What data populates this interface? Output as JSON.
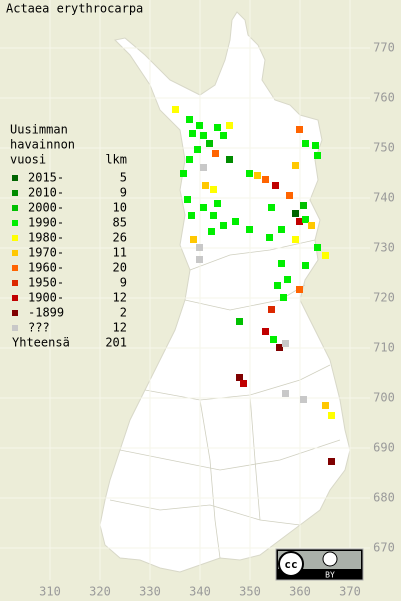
{
  "title": "Actaea erythrocarpa",
  "legend": {
    "header": [
      "Uusimman",
      "havainnon",
      "vuosi"
    ],
    "count_header": "lkm",
    "entries": [
      {
        "label": "2015-",
        "count": 5,
        "color": "#006400"
      },
      {
        "label": "2010-",
        "count": 9,
        "color": "#008c00"
      },
      {
        "label": "2000-",
        "count": 10,
        "color": "#00c000"
      },
      {
        "label": "1990-",
        "count": 85,
        "color": "#00ee00"
      },
      {
        "label": "1980-",
        "count": 26,
        "color": "#ffff00"
      },
      {
        "label": "1970-",
        "count": 11,
        "color": "#ffc800"
      },
      {
        "label": "1960-",
        "count": 20,
        "color": "#ff6400"
      },
      {
        "label": "1950-",
        "count": 9,
        "color": "#dc2800"
      },
      {
        "label": "1900-",
        "count": 12,
        "color": "#c00000"
      },
      {
        "label": "-1899",
        "count": 2,
        "color": "#800000"
      },
      {
        "label": "???",
        "count": 12,
        "color": "#c8c8c8"
      }
    ],
    "total_label": "Yhteensä",
    "total": 201
  },
  "x_axis_labels": [
    310,
    320,
    330,
    340,
    350,
    360,
    370
  ],
  "y_axis_labels": [
    770,
    760,
    750,
    740,
    730,
    720,
    710,
    700,
    690,
    680,
    670
  ],
  "license": {
    "cc": "cc",
    "by": "BY"
  }
}
